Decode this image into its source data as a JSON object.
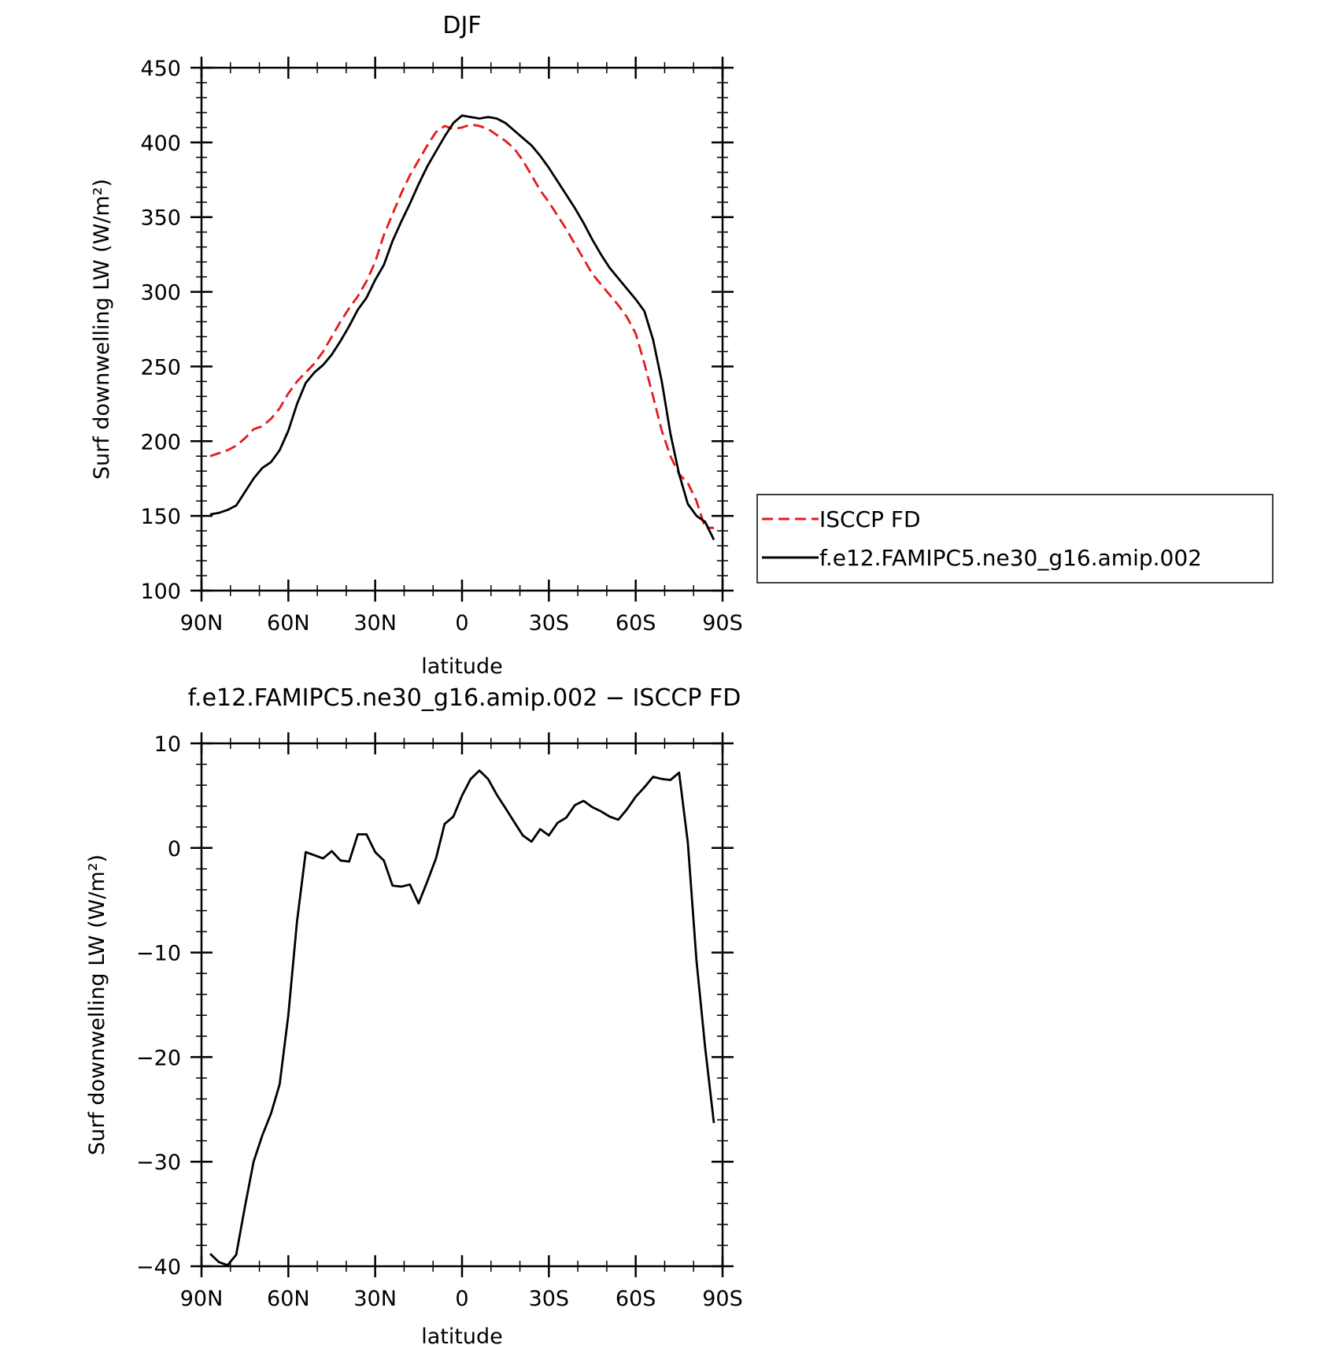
{
  "chart_data": [
    {
      "type": "line",
      "title": "DJF",
      "xlabel": "latitude",
      "ylabel": "Surf downwelling LW (W/m²)",
      "xlim": [
        90,
        -90
      ],
      "ylim": [
        100,
        450
      ],
      "xticks": [
        90,
        60,
        30,
        0,
        -30,
        -60,
        -90
      ],
      "xtick_labels": [
        "90N",
        "60N",
        "30N",
        "0",
        "30S",
        "60S",
        "90S"
      ],
      "yticks": [
        100,
        150,
        200,
        250,
        300,
        350,
        400,
        450
      ],
      "ytick_labels": [
        "100",
        "150",
        "200",
        "250",
        "300",
        "350",
        "400",
        "450"
      ],
      "legend_position": "right",
      "series": [
        {
          "name": "ISCCP FD",
          "color": "#e41a1c",
          "dash": "dashed",
          "x": [
            87,
            84,
            81,
            78,
            75,
            72,
            69,
            66,
            63,
            60,
            57,
            54,
            51,
            48,
            45,
            42,
            39,
            36,
            33,
            30,
            27,
            24,
            21,
            18,
            15,
            12,
            9,
            6,
            3,
            0,
            -3,
            -6,
            -9,
            -12,
            -15,
            -18,
            -21,
            -24,
            -27,
            -30,
            -33,
            -36,
            -39,
            -42,
            -45,
            -48,
            -51,
            -54,
            -57,
            -60,
            -63,
            -66,
            -69,
            -72,
            -75,
            -78,
            -81,
            -84,
            -87
          ],
          "y": [
            190,
            192,
            194,
            197,
            202,
            208,
            210,
            215,
            222,
            232,
            240,
            246,
            252,
            260,
            270,
            280,
            289,
            297,
            307,
            320,
            338,
            352,
            366,
            378,
            388,
            398,
            407,
            411,
            409,
            410,
            412,
            411,
            409,
            405,
            401,
            396,
            388,
            378,
            368,
            360,
            351,
            342,
            332,
            322,
            312,
            305,
            298,
            291,
            283,
            272,
            252,
            230,
            207,
            190,
            178,
            172,
            160,
            142,
            142
          ]
        },
        {
          "name": "f.e12.FAMIPC5.ne30_g16.amip.002",
          "color": "#000000",
          "dash": "solid",
          "x": [
            87,
            84,
            81,
            78,
            75,
            72,
            69,
            66,
            63,
            60,
            57,
            54,
            51,
            48,
            45,
            42,
            39,
            36,
            33,
            30,
            27,
            24,
            21,
            18,
            15,
            12,
            9,
            6,
            3,
            0,
            -3,
            -6,
            -9,
            -12,
            -15,
            -18,
            -21,
            -24,
            -27,
            -30,
            -33,
            -36,
            -39,
            -42,
            -45,
            -48,
            -51,
            -54,
            -57,
            -60,
            -63,
            -66,
            -69,
            -72,
            -75,
            -78,
            -81,
            -84,
            -87
          ],
          "y": [
            151,
            152,
            154,
            157,
            166,
            175,
            182,
            186,
            194,
            207,
            225,
            239,
            246,
            251,
            258,
            267,
            277,
            288,
            296,
            308,
            318,
            334,
            347,
            359,
            372,
            384,
            394,
            404,
            413,
            418,
            417,
            416,
            417,
            416,
            413,
            408,
            403,
            398,
            391,
            383,
            374,
            365,
            356,
            346,
            335,
            325,
            316,
            309,
            302,
            295,
            287,
            268,
            240,
            205,
            178,
            158,
            150,
            146,
            134
          ]
        }
      ]
    },
    {
      "type": "line",
      "title": "f.e12.FAMIPC5.ne30_g16.amip.002 − ISCCP FD",
      "xlabel": "latitude",
      "ylabel": "Surf downwelling LW (W/m²)",
      "xlim": [
        90,
        -90
      ],
      "ylim": [
        -40,
        10
      ],
      "xticks": [
        90,
        60,
        30,
        0,
        -30,
        -60,
        -90
      ],
      "xtick_labels": [
        "90N",
        "60N",
        "30N",
        "0",
        "30S",
        "60S",
        "90S"
      ],
      "yticks": [
        10,
        0,
        -10,
        -20,
        -30,
        -40
      ],
      "ytick_labels": [
        "10",
        "0",
        "−10",
        "−20",
        "−30",
        "−40"
      ],
      "series": [
        {
          "name": "",
          "color": "#000000",
          "dash": "solid",
          "x": [
            87,
            84,
            81,
            78,
            75,
            72,
            69,
            66,
            63,
            60,
            57,
            54,
            51,
            48,
            45,
            42,
            39,
            36,
            33,
            30,
            27,
            24,
            21,
            18,
            15,
            12,
            9,
            6,
            3,
            0,
            -3,
            -6,
            -9,
            -12,
            -15,
            -18,
            -21,
            -24,
            -27,
            -30,
            -33,
            -36,
            -39,
            -42,
            -45,
            -48,
            -51,
            -54,
            -57,
            -60,
            -63,
            -66,
            -69,
            -72,
            -75,
            -78,
            -81,
            -84,
            -87
          ],
          "y": [
            -38.8,
            -39.6,
            -39.9,
            -38.9,
            -34.3,
            -30.0,
            -27.5,
            -25.4,
            -22.6,
            -16.0,
            -7.0,
            -0.4,
            -0.7,
            -1.0,
            -0.3,
            -1.2,
            -1.3,
            1.3,
            1.3,
            -0.4,
            -1.2,
            -3.6,
            -3.7,
            -3.5,
            -5.3,
            -3.2,
            -1.0,
            2.3,
            3.0,
            5.0,
            6.6,
            7.4,
            6.6,
            5.1,
            3.8,
            2.5,
            1.2,
            0.6,
            1.8,
            1.2,
            2.4,
            2.9,
            4.1,
            4.5,
            3.9,
            3.5,
            3.0,
            2.7,
            3.7,
            4.9,
            5.8,
            6.8,
            6.6,
            6.5,
            7.2,
            0.5,
            -10.8,
            -19.1,
            -26.3
          ]
        }
      ]
    }
  ]
}
